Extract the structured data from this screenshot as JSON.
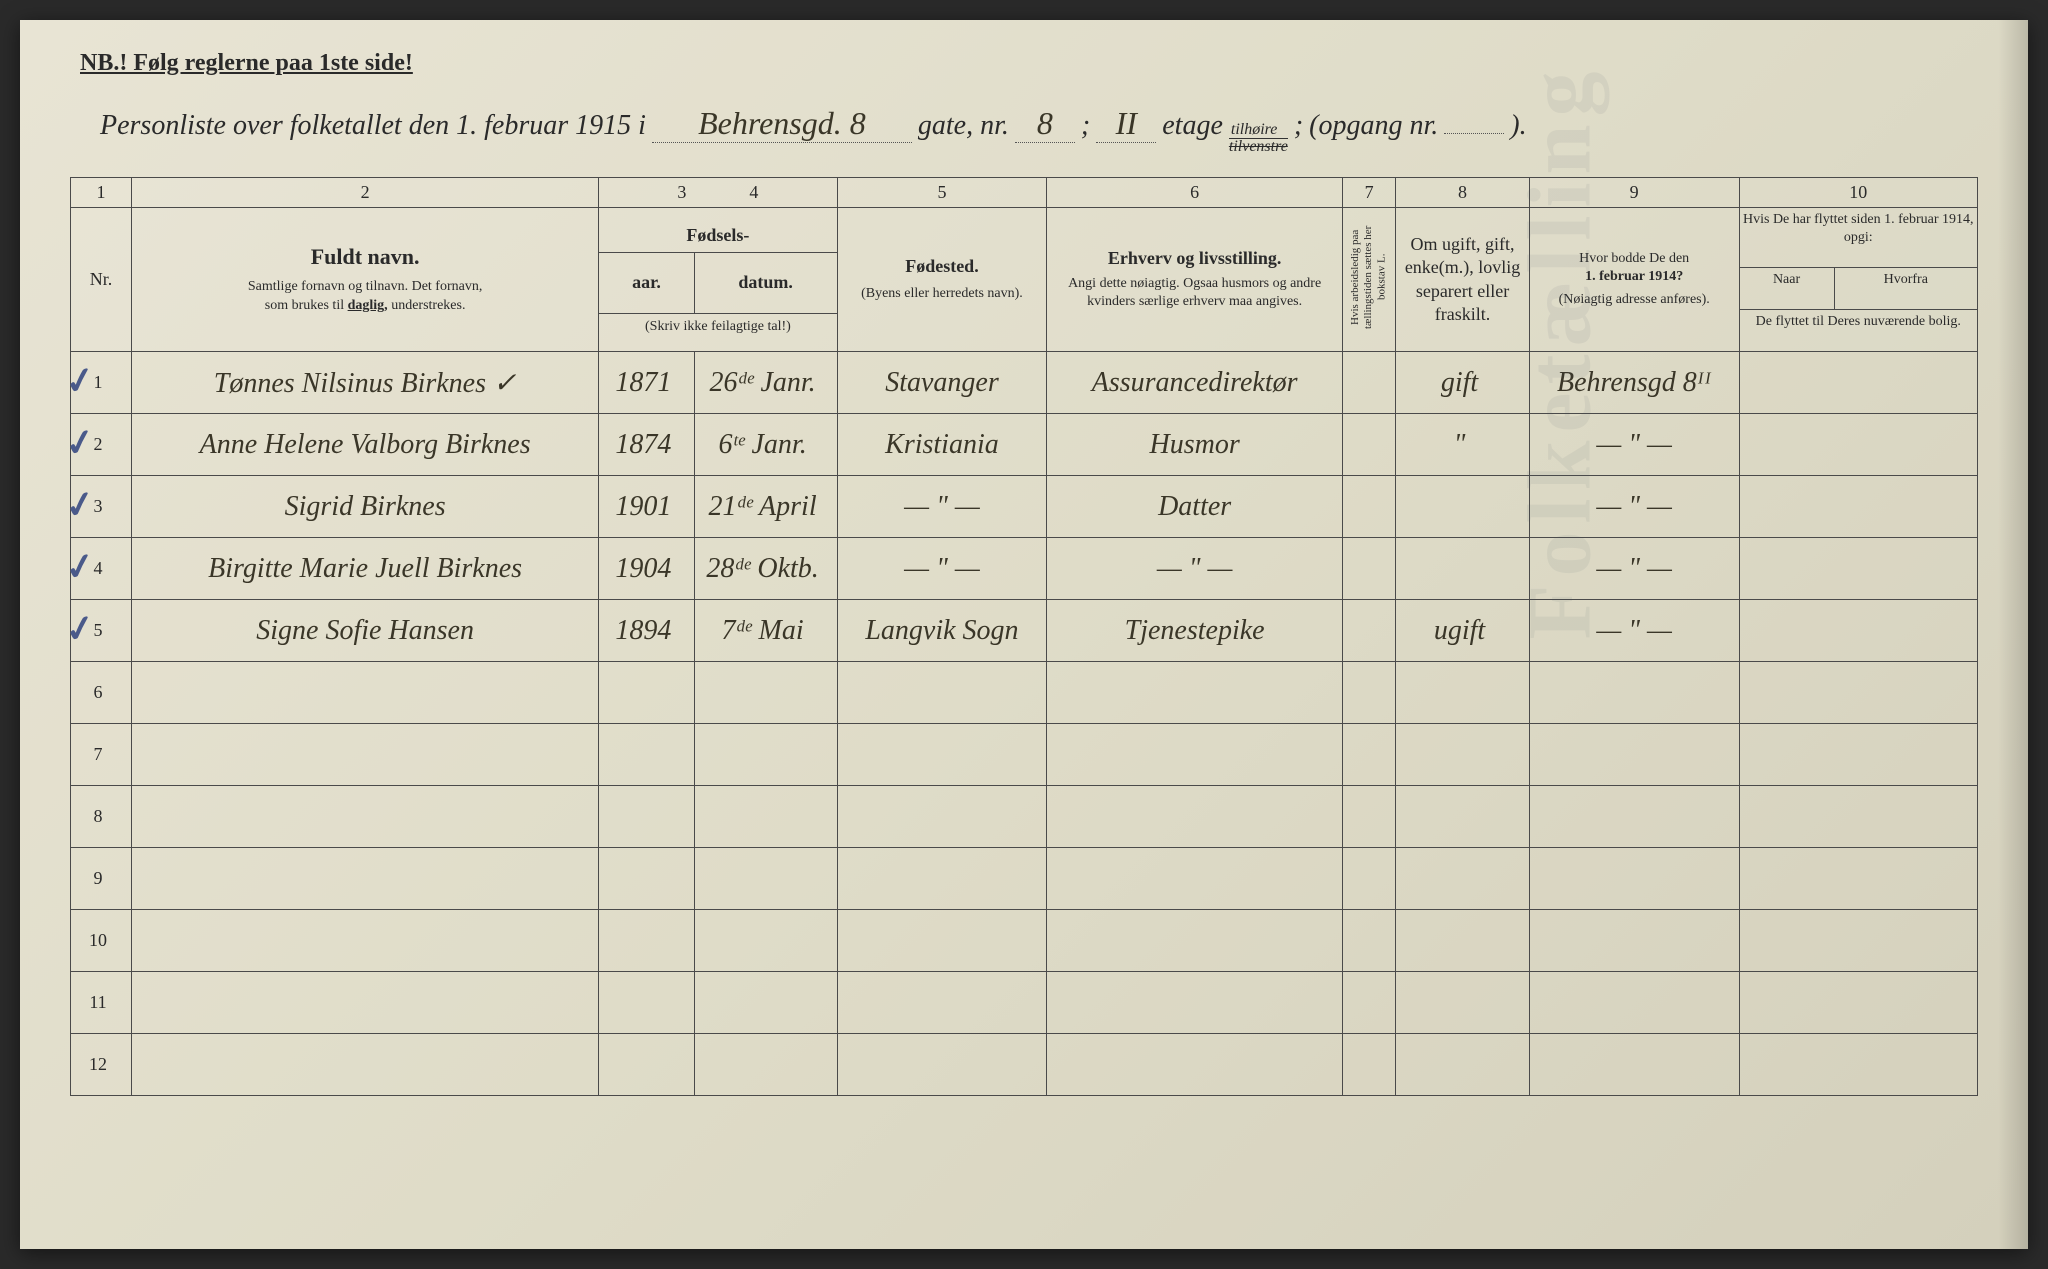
{
  "nb_text": "NB.! Følg reglerne paa 1ste side!",
  "title": {
    "prefix": "Personliste over folketallet den 1. februar 1915 i",
    "street_hw": "Behrensgd. 8",
    "gate_label": "gate, nr.",
    "nr_hw": "8",
    "semicolon": ";",
    "etage_hw": "II",
    "etage_label": "etage",
    "tilhoire": "tilhøire",
    "tilvenstre": "tilvenstre",
    "opgang_label": "(opgang nr.",
    "opgang_val": "",
    "close": ")."
  },
  "colnums": [
    "1",
    "2",
    "3",
    "4",
    "5",
    "6",
    "7",
    "8",
    "9",
    "10"
  ],
  "headers": {
    "nr": "Nr.",
    "name_title": "Fuldt navn.",
    "name_sub": "Samtlige fornavn og tilnavn. Det fornavn, som brukes til daglig, understrekes.",
    "fodsels": "Fødsels-",
    "aar": "aar.",
    "datum": "datum.",
    "fodsels_note": "(Skriv ikke feilagtige tal!)",
    "fodested": "Fødested.",
    "fodested_sub": "(Byens eller herredets navn).",
    "erhverv": "Erhverv og livsstilling.",
    "erhverv_sub": "Angi dette nøiagtig. Ogsaa husmors og andre kvinders særlige erhverv maa angives.",
    "col7": "Hvis arbeidsledig paa tællingstiden sættes her bokstav L.",
    "col8": "Om ugift, gift, enke(m.), lovlig separert eller fraskilt.",
    "col9_a": "Hvor bodde De den",
    "col9_b": "1. februar 1914?",
    "col9_c": "(Nøiagtig adresse anføres).",
    "col10_top": "Hvis De har flyttet siden 1. februar 1914, opgi:",
    "col10_naar": "Naar",
    "col10_hvorfra": "Hvorfra",
    "col10_bottom": "De flyttet til Deres nuværende bolig."
  },
  "rows": [
    {
      "nr": "1",
      "check": true,
      "name": "Tønnes Nilsinus Birknes ✓",
      "year": "1871",
      "datum": "26ᵈᵉ Janr.",
      "sted": "Stavanger",
      "erhverv": "Assurancedirektør",
      "c7": "",
      "c8": "gift",
      "c9": "Behrensgd 8ᴵᴵ",
      "c10": ""
    },
    {
      "nr": "2",
      "check": true,
      "name": "Anne Helene Valborg Birknes",
      "year": "1874",
      "datum": "6ᵗᵉ Janr.",
      "sted": "Kristiania",
      "erhverv": "Husmor",
      "c7": "",
      "c8": "\"",
      "c9": "— \" —",
      "c10": ""
    },
    {
      "nr": "3",
      "check": true,
      "name": "Sigrid Birknes",
      "year": "1901",
      "datum": "21ᵈᵉ April",
      "sted": "— \" —",
      "erhverv": "Datter",
      "c7": "",
      "c8": "",
      "c9": "— \" —",
      "c10": ""
    },
    {
      "nr": "4",
      "check": true,
      "name": "Birgitte Marie Juell Birknes",
      "year": "1904",
      "datum": "28ᵈᵉ Oktb.",
      "sted": "— \" —",
      "erhverv": "— \" —",
      "c7": "",
      "c8": "",
      "c9": "— \" —",
      "c10": ""
    },
    {
      "nr": "5",
      "check": true,
      "name": "Signe Sofie Hansen",
      "year": "1894",
      "datum": "7ᵈᵉ Mai",
      "sted": "Langvik Sogn",
      "erhverv": "Tjenestepike",
      "c7": "",
      "c8": "ugift",
      "c9": "— \" —",
      "c10": ""
    },
    {
      "nr": "6",
      "check": false,
      "name": "",
      "year": "",
      "datum": "",
      "sted": "",
      "erhverv": "",
      "c7": "",
      "c8": "",
      "c9": "",
      "c10": ""
    },
    {
      "nr": "7",
      "check": false,
      "name": "",
      "year": "",
      "datum": "",
      "sted": "",
      "erhverv": "",
      "c7": "",
      "c8": "",
      "c9": "",
      "c10": ""
    },
    {
      "nr": "8",
      "check": false,
      "name": "",
      "year": "",
      "datum": "",
      "sted": "",
      "erhverv": "",
      "c7": "",
      "c8": "",
      "c9": "",
      "c10": ""
    },
    {
      "nr": "9",
      "check": false,
      "name": "",
      "year": "",
      "datum": "",
      "sted": "",
      "erhverv": "",
      "c7": "",
      "c8": "",
      "c9": "",
      "c10": ""
    },
    {
      "nr": "10",
      "check": false,
      "name": "",
      "year": "",
      "datum": "",
      "sted": "",
      "erhverv": "",
      "c7": "",
      "c8": "",
      "c9": "",
      "c10": ""
    },
    {
      "nr": "11",
      "check": false,
      "name": "",
      "year": "",
      "datum": "",
      "sted": "",
      "erhverv": "",
      "c7": "",
      "c8": "",
      "c9": "",
      "c10": ""
    },
    {
      "nr": "12",
      "check": false,
      "name": "",
      "year": "",
      "datum": "",
      "sted": "",
      "erhverv": "",
      "c7": "",
      "c8": "",
      "c9": "",
      "c10": ""
    }
  ],
  "colors": {
    "paper": "#e8e4d4",
    "ink": "#2a2a2a",
    "handwriting": "#3a3628",
    "checkmark": "#4a5a8a",
    "border": "#4a4a4a"
  },
  "col_widths_pct": [
    3.2,
    24.5,
    5,
    7.5,
    11,
    15.5,
    2.8,
    7,
    11,
    12.5
  ]
}
